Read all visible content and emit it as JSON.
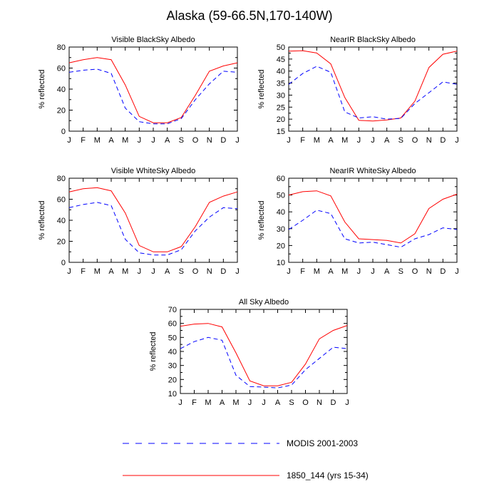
{
  "title": "Alaska (59-66.5N,170-140W)",
  "legend": [
    {
      "label": "MODIS 2001-2003",
      "color": "#0000ff",
      "dash": true
    },
    {
      "label": "1850_144 (yrs 15-34)",
      "color": "#ff0000",
      "dash": false
    }
  ],
  "chart_data": [
    {
      "type": "line",
      "title": "Visible BlackSky Albedo",
      "ylabel": "% reflected",
      "x": [
        "J",
        "F",
        "M",
        "A",
        "M",
        "J",
        "J",
        "A",
        "S",
        "O",
        "N",
        "D",
        "J"
      ],
      "ylim": [
        0,
        80
      ],
      "yticks": [
        0,
        20,
        40,
        60,
        80
      ],
      "series": [
        {
          "name": "1850_144 (yrs 15-34)",
          "values": [
            65,
            68,
            70,
            68,
            44,
            14,
            8,
            8,
            13,
            34,
            57,
            62,
            65
          ]
        },
        {
          "name": "MODIS 2001-2003",
          "values": [
            56,
            58,
            59,
            55,
            22,
            9,
            7,
            7,
            12,
            30,
            45,
            57,
            56
          ]
        }
      ]
    },
    {
      "type": "line",
      "title": "NearIR BlackSky Albedo",
      "ylabel": "% reflected",
      "x": [
        "J",
        "F",
        "M",
        "A",
        "M",
        "J",
        "J",
        "A",
        "S",
        "O",
        "N",
        "D",
        "J"
      ],
      "ylim": [
        15,
        50
      ],
      "yticks": [
        15,
        20,
        25,
        30,
        35,
        40,
        45,
        50
      ],
      "series": [
        {
          "name": "1850_144 (yrs 15-34)",
          "values": [
            48.3,
            48.5,
            47.5,
            43,
            29,
            19.5,
            19.2,
            19.7,
            20.5,
            27.5,
            41.5,
            47,
            48.3
          ]
        },
        {
          "name": "MODIS 2001-2003",
          "values": [
            34.5,
            39,
            42,
            39.5,
            23,
            20.5,
            21,
            20,
            20.3,
            26.5,
            31,
            35.5,
            34.5
          ]
        }
      ]
    },
    {
      "type": "line",
      "title": "Visible WhiteSky Albedo",
      "ylabel": "% reflected",
      "x": [
        "J",
        "F",
        "M",
        "A",
        "M",
        "J",
        "J",
        "A",
        "S",
        "O",
        "N",
        "D",
        "J"
      ],
      "ylim": [
        0,
        80
      ],
      "yticks": [
        0,
        20,
        40,
        60,
        80
      ],
      "series": [
        {
          "name": "1850_144 (yrs 15-34)",
          "values": [
            67,
            70,
            71,
            68,
            47,
            16,
            10,
            10,
            15,
            34,
            57,
            63,
            67
          ]
        },
        {
          "name": "MODIS 2001-2003",
          "values": [
            52,
            55,
            57,
            54,
            22,
            9,
            7,
            7,
            12,
            30,
            43,
            52,
            51
          ]
        }
      ]
    },
    {
      "type": "line",
      "title": "NearIR WhiteSky Albedo",
      "ylabel": "% reflected",
      "x": [
        "J",
        "F",
        "M",
        "A",
        "M",
        "J",
        "J",
        "A",
        "S",
        "O",
        "N",
        "D",
        "J"
      ],
      "ylim": [
        10,
        60
      ],
      "yticks": [
        10,
        20,
        30,
        40,
        50,
        60
      ],
      "series": [
        {
          "name": "1850_144 (yrs 15-34)",
          "values": [
            50,
            52,
            52.5,
            49.5,
            34,
            24,
            23.5,
            23,
            21.5,
            27,
            42,
            47.5,
            50.5
          ]
        },
        {
          "name": "MODIS 2001-2003",
          "values": [
            29.5,
            35,
            41,
            39,
            24,
            21.5,
            22,
            20.5,
            19,
            24,
            26.5,
            30.5,
            29.5
          ]
        }
      ]
    },
    {
      "type": "line",
      "title": "All Sky Albedo",
      "ylabel": "% reflected",
      "x": [
        "J",
        "F",
        "M",
        "A",
        "M",
        "J",
        "J",
        "A",
        "S",
        "O",
        "N",
        "D",
        "J"
      ],
      "ylim": [
        10,
        70
      ],
      "yticks": [
        10,
        20,
        30,
        40,
        50,
        60,
        70
      ],
      "series": [
        {
          "name": "1850_144 (yrs 15-34)",
          "values": [
            58,
            59.5,
            60,
            57.5,
            39,
            19,
            15.5,
            15.5,
            18,
            31,
            49,
            55,
            58.5
          ]
        },
        {
          "name": "MODIS 2001-2003",
          "values": [
            42,
            47,
            50,
            48,
            23,
            15,
            14.5,
            14,
            16,
            27,
            35,
            43,
            42
          ]
        }
      ]
    }
  ]
}
